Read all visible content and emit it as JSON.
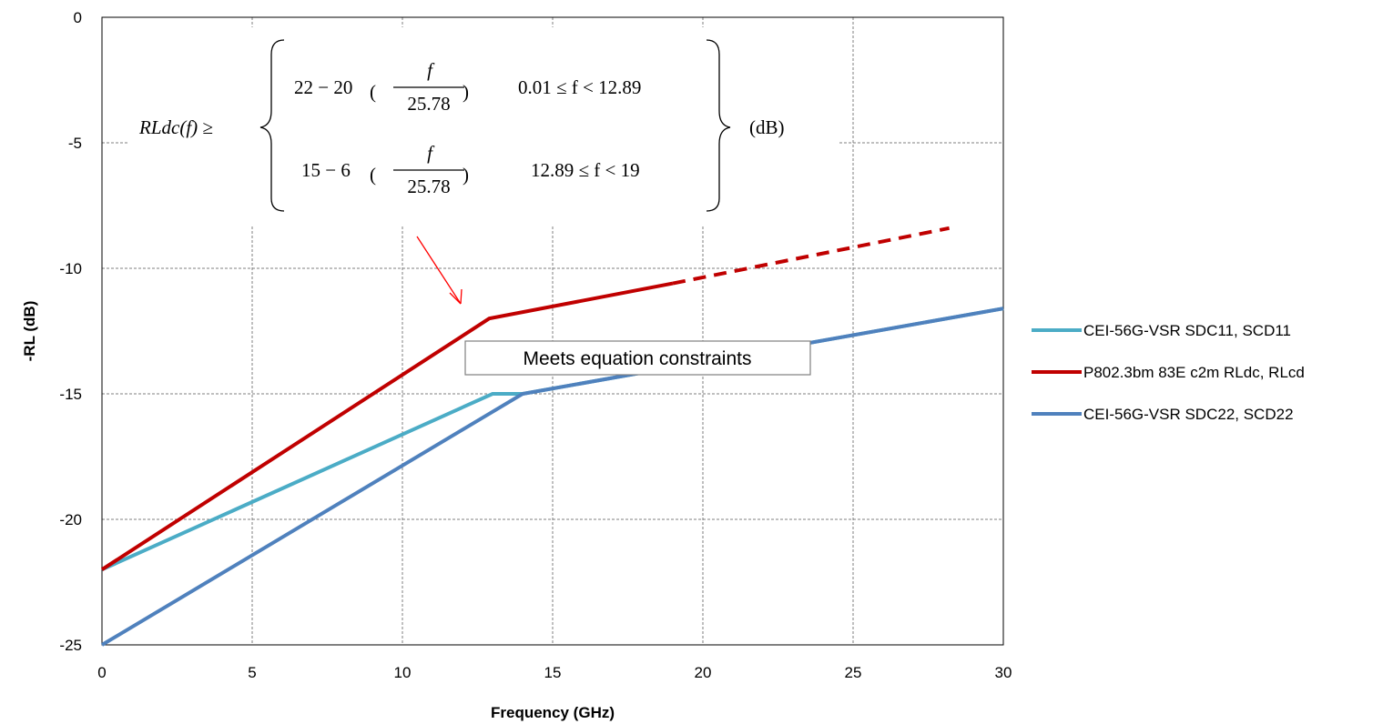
{
  "chart_data": {
    "type": "line",
    "xlabel": "Frequency (GHz)",
    "ylabel": "-RL (dB)",
    "xlim": [
      0,
      30
    ],
    "ylim": [
      -25,
      0
    ],
    "x_ticks": [
      0,
      5,
      10,
      15,
      20,
      25,
      30
    ],
    "y_ticks": [
      0,
      -5,
      -10,
      -15,
      -20,
      -25
    ],
    "grid": "dashed",
    "legend_position": "right",
    "series": [
      {
        "name": "CEI-56G-VSR SDC11, SCD11",
        "color": "#4bacc6",
        "style": "solid",
        "points": [
          [
            0,
            -22
          ],
          [
            13,
            -15
          ],
          [
            14,
            -15
          ],
          [
            30,
            -11.6
          ]
        ]
      },
      {
        "name": "P802.3bm 83E c2m RLdc, RLcd",
        "color": "#c00000",
        "style": "solid",
        "points": [
          [
            0,
            -22
          ],
          [
            12.89,
            -12
          ],
          [
            19,
            -10.6
          ]
        ],
        "dashed_extension": [
          [
            19,
            -10.6
          ],
          [
            28.2,
            -8.4
          ]
        ]
      },
      {
        "name": "CEI-56G-VSR SDC22, SCD22",
        "color": "#4f81bd",
        "style": "solid",
        "points": [
          [
            0,
            -25
          ],
          [
            14,
            -15
          ],
          [
            30,
            -11.6
          ]
        ]
      }
    ],
    "annotations": {
      "callout": "Meets equation constraints",
      "equation": {
        "lhs": "RLdc(f) ≥",
        "row1_expr_left": "22 − 20",
        "row1_frac_num": "f",
        "row1_frac_den": "25.78",
        "row1_range": "0.01 ≤ f < 12.89",
        "row2_expr_left": "15 − 6",
        "row2_frac_num": "f",
        "row2_frac_den": "25.78",
        "row2_range": "12.89 ≤ f < 19",
        "unit": "(dB)"
      }
    }
  }
}
